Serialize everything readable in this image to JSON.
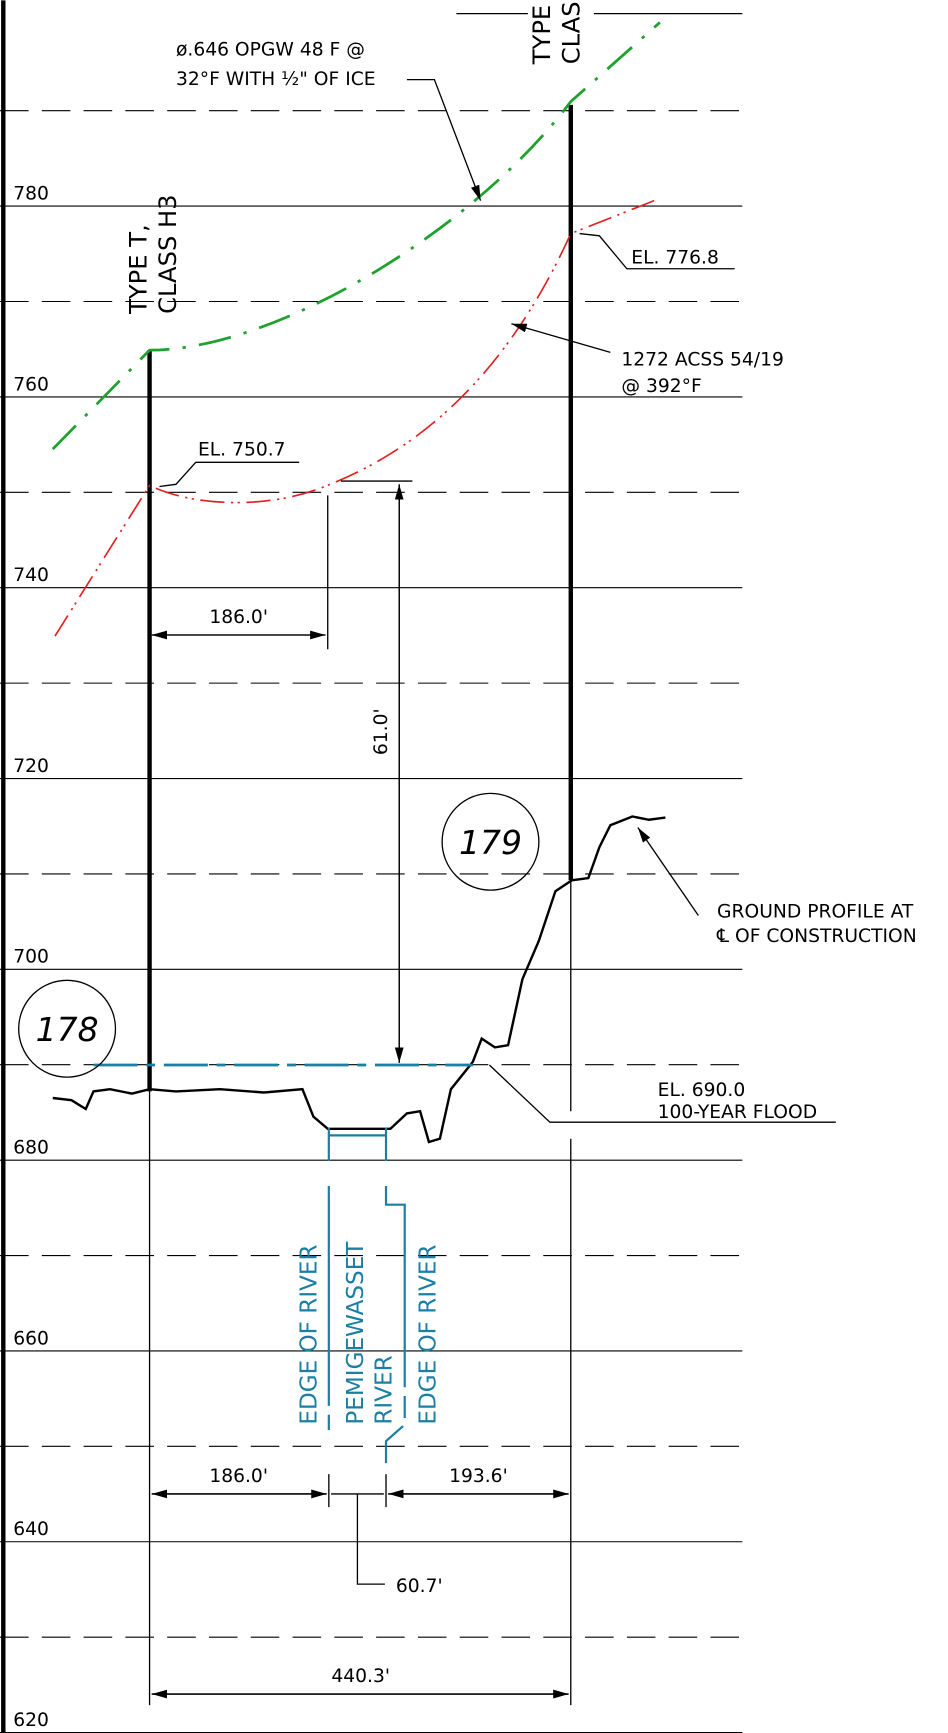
{
  "elevations": [
    780,
    760,
    740,
    720,
    700,
    680,
    660,
    640,
    620
  ],
  "structures": [
    {
      "number": "178",
      "type": "TYPE T,",
      "class": "CLASS H3"
    },
    {
      "number": "179",
      "type": "TYPE",
      "class": "CLAS"
    }
  ],
  "annotations": {
    "opgw": [
      "ø.646 OPGW 48 F @",
      "32°F WITH ½\" OF ICE"
    ],
    "el_776": "EL. 776.8",
    "acss": [
      "1272 ACSS 54/19",
      "@ 392°F"
    ],
    "el_750": "EL. 750.7",
    "ground": [
      "GROUND PROFILE AT",
      "℄ OF CONSTRUCTION"
    ],
    "flood": [
      "EL. 690.0",
      "100-YEAR FLOOD"
    ],
    "river": [
      "EDGE OF RIVER",
      "PEMIGEWASSET",
      "RIVER",
      "EDGE OF RIVER"
    ]
  },
  "dimensions": {
    "span_top": "186.0'",
    "clearance": "61.0'",
    "left": "186.0'",
    "right": "193.6'",
    "river": "60.7'",
    "total": "440.3'"
  }
}
